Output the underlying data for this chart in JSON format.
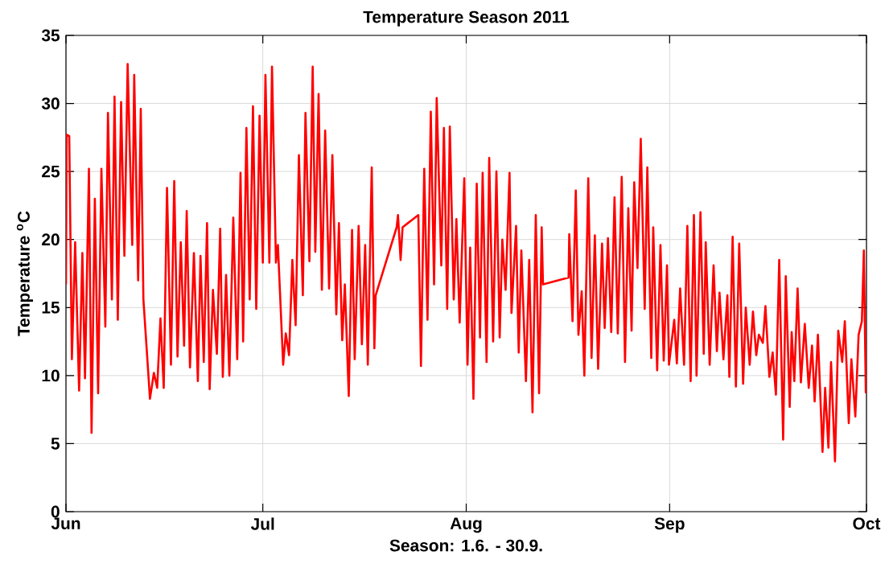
{
  "chart_data": {
    "type": "line",
    "title": "Temperature Season 2011",
    "xlabel": "Season: 1.6. - 30.9.",
    "ylabel": "Temperature $^{o}$C",
    "x": [
      "2011-06-01T00:00",
      "2011-06-01T02:24",
      "2011-06-01T12:00",
      "2011-06-01T21:36",
      "2011-06-02T09:36",
      "2011-06-03T00:00",
      "2011-06-03T12:00",
      "2011-06-03T21:36",
      "2011-06-04T12:00",
      "2011-06-04T21:36",
      "2011-06-05T09:36",
      "2011-06-05T21:36",
      "2011-06-06T09:36",
      "2011-06-07T00:00",
      "2011-06-07T09:36",
      "2011-06-08T00:00",
      "2011-06-08T09:36",
      "2011-06-08T21:36",
      "2011-06-09T09:36",
      "2011-06-09T21:36",
      "2011-06-10T09:36",
      "2011-06-11T02:24",
      "2011-06-11T09:36",
      "2011-06-12T00:00",
      "2011-06-12T09:36",
      "2011-06-12T19:12",
      "2011-06-13T19:12",
      "2011-06-14T09:36",
      "2011-06-14T21:36",
      "2011-06-15T09:36",
      "2011-06-15T21:36",
      "2011-06-16T09:36",
      "2011-06-17T00:00",
      "2011-06-17T12:00",
      "2011-06-18T00:00",
      "2011-06-18T12:00",
      "2011-06-19T00:00",
      "2011-06-19T09:36",
      "2011-06-19T21:36",
      "2011-06-20T12:00",
      "2011-06-21T02:24",
      "2011-06-21T12:00",
      "2011-06-22T00:00",
      "2011-06-22T12:00",
      "2011-06-22T21:36",
      "2011-06-23T09:36",
      "2011-06-24T00:00",
      "2011-06-24T12:00",
      "2011-06-24T21:36",
      "2011-06-25T09:36",
      "2011-06-25T21:36",
      "2011-06-26T12:00",
      "2011-06-27T02:24",
      "2011-06-27T14:24",
      "2011-06-28T00:00",
      "2011-06-28T12:00",
      "2011-06-29T00:00",
      "2011-06-29T12:00",
      "2011-06-30T00:00",
      "2011-06-30T12:00",
      "2011-07-01T00:00",
      "2011-07-01T09:36",
      "2011-07-02T00:00",
      "2011-07-02T09:36",
      "2011-07-03T00:00",
      "2011-07-03T07:12",
      "2011-07-04T02:24",
      "2011-07-04T12:00",
      "2011-07-05T00:00",
      "2011-07-05T12:00",
      "2011-07-06T00:00",
      "2011-07-06T12:00",
      "2011-07-07T02:24",
      "2011-07-07T12:00",
      "2011-07-08T02:24",
      "2011-07-08T14:24",
      "2011-07-09T00:00",
      "2011-07-09T12:00",
      "2011-07-10T00:00",
      "2011-07-10T12:00",
      "2011-07-11T02:24",
      "2011-07-11T14:24",
      "2011-07-12T04:48",
      "2011-07-12T14:24",
      "2011-07-13T02:24",
      "2011-07-13T12:00",
      "2011-07-14T02:24",
      "2011-07-14T14:24",
      "2011-07-15T00:00",
      "2011-07-15T14:24",
      "2011-07-16T02:24",
      "2011-07-16T14:24",
      "2011-07-17T00:00",
      "2011-07-17T14:24",
      "2011-07-18T00:00",
      "2011-07-18T04:48",
      "2011-07-21T09:36",
      "2011-07-21T14:24",
      "2011-07-22T00:00",
      "2011-07-22T07:12",
      "2011-07-24T16:48",
      "2011-07-25T02:24",
      "2011-07-25T14:24",
      "2011-07-26T02:24",
      "2011-07-26T14:24",
      "2011-07-27T02:24",
      "2011-07-27T12:00",
      "2011-07-28T04:48",
      "2011-07-28T14:24",
      "2011-07-29T02:24",
      "2011-07-29T12:00",
      "2011-07-30T02:24",
      "2011-07-30T12:00",
      "2011-07-31T00:00",
      "2011-07-31T16:48",
      "2011-08-01T04:48",
      "2011-08-01T14:24",
      "2011-08-02T02:24",
      "2011-08-02T14:24",
      "2011-08-03T02:24",
      "2011-08-03T12:00",
      "2011-08-04T02:24",
      "2011-08-04T12:00",
      "2011-08-05T02:24",
      "2011-08-05T14:24",
      "2011-08-06T02:24",
      "2011-08-06T12:00",
      "2011-08-07T00:00",
      "2011-08-07T14:24",
      "2011-08-07T21:36",
      "2011-08-08T14:24",
      "2011-08-09T00:00",
      "2011-08-09T09:36",
      "2011-08-10T02:24",
      "2011-08-10T14:24",
      "2011-08-11T02:24",
      "2011-08-11T14:24",
      "2011-08-12T02:24",
      "2011-08-12T12:00",
      "2011-08-12T16:48",
      "2011-08-16T14:24",
      "2011-08-16T16:48",
      "2011-08-17T04:48",
      "2011-08-17T16:48",
      "2011-08-18T02:24",
      "2011-08-18T14:24",
      "2011-08-19T00:00",
      "2011-08-19T14:24",
      "2011-08-20T02:24",
      "2011-08-20T14:24",
      "2011-08-21T02:24",
      "2011-08-21T16:48",
      "2011-08-22T02:24",
      "2011-08-22T14:24",
      "2011-08-23T02:24",
      "2011-08-23T14:24",
      "2011-08-24T02:24",
      "2011-08-24T16:48",
      "2011-08-25T04:48",
      "2011-08-25T16:48",
      "2011-08-26T04:48",
      "2011-08-26T14:24",
      "2011-08-27T02:24",
      "2011-08-27T14:24",
      "2011-08-28T04:48",
      "2011-08-28T14:24",
      "2011-08-29T04:48",
      "2011-08-29T12:00",
      "2011-08-30T02:24",
      "2011-08-30T14:24",
      "2011-08-31T02:24",
      "2011-08-31T14:24",
      "2011-08-31T21:36",
      "2011-09-01T16:48",
      "2011-09-02T02:24",
      "2011-09-02T14:24",
      "2011-09-03T04:48",
      "2011-09-03T16:48",
      "2011-09-04T04:48",
      "2011-09-04T16:48",
      "2011-09-05T02:24",
      "2011-09-05T16:48",
      "2011-09-06T04:48",
      "2011-09-06T12:00",
      "2011-09-07T02:24",
      "2011-09-07T16:48",
      "2011-09-08T04:48",
      "2011-09-08T14:24",
      "2011-09-09T04:48",
      "2011-09-09T19:12",
      "2011-09-10T02:24",
      "2011-09-10T14:24",
      "2011-09-11T02:24",
      "2011-09-11T14:24",
      "2011-09-12T04:48",
      "2011-09-12T14:24",
      "2011-09-13T04:48",
      "2011-09-13T16:48",
      "2011-09-14T04:48",
      "2011-09-14T14:24",
      "2011-09-15T04:48",
      "2011-09-15T14:24",
      "2011-09-16T04:48",
      "2011-09-16T16:48",
      "2011-09-17T04:48",
      "2011-09-17T16:48",
      "2011-09-18T07:12",
      "2011-09-18T16:48",
      "2011-09-19T07:12",
      "2011-09-19T14:24",
      "2011-09-20T00:00",
      "2011-09-20T12:00",
      "2011-09-21T00:00",
      "2011-09-21T14:24",
      "2011-09-22T04:48",
      "2011-09-22T16:48",
      "2011-09-23T02:24",
      "2011-09-23T14:24",
      "2011-09-24T07:12",
      "2011-09-24T16:48",
      "2011-09-25T04:48",
      "2011-09-25T14:24",
      "2011-09-26T04:48",
      "2011-09-26T16:48",
      "2011-09-27T07:12",
      "2011-09-27T16:48",
      "2011-09-28T07:12",
      "2011-09-28T16:48",
      "2011-09-29T07:12",
      "2011-09-29T19:12",
      "2011-09-30T07:12",
      "2011-09-30T14:24",
      "2011-09-30T21:36"
    ],
    "series": [
      {
        "color": "#ff0000",
        "values": [
          16.7,
          27.7,
          27.6,
          11.2,
          19.8,
          8.9,
          19.0,
          9.8,
          25.2,
          5.8,
          23.0,
          8.7,
          25.2,
          13.6,
          29.3,
          15.6,
          30.5,
          14.1,
          30.1,
          18.8,
          32.9,
          19.6,
          32.1,
          17.0,
          29.6,
          15.6,
          8.3,
          10.2,
          9.1,
          14.2,
          9.1,
          23.8,
          10.8,
          24.3,
          11.4,
          19.8,
          12.2,
          22.1,
          10.6,
          19.0,
          9.6,
          18.8,
          11.0,
          21.2,
          9.0,
          16.3,
          11.6,
          20.8,
          9.9,
          17.4,
          10.0,
          21.6,
          11.2,
          24.9,
          12.5,
          28.2,
          15.6,
          29.8,
          14.9,
          29.1,
          18.3,
          32.1,
          18.3,
          32.7,
          18.3,
          19.6,
          10.8,
          13.1,
          11.5,
          18.5,
          13.7,
          26.2,
          15.9,
          29.3,
          18.4,
          32.7,
          19.1,
          30.7,
          16.3,
          28.0,
          16.4,
          26.2,
          14.5,
          21.2,
          12.6,
          16.7,
          8.5,
          20.7,
          11.2,
          21.0,
          12.3,
          19.6,
          10.8,
          25.3,
          12.0,
          15.9,
          20.9,
          21.8,
          18.5,
          20.9,
          21.8,
          10.7,
          25.2,
          14.1,
          29.4,
          16.7,
          30.4,
          18.1,
          28.2,
          14.9,
          28.3,
          15.6,
          21.5,
          13.9,
          24.5,
          10.8,
          19.4,
          8.3,
          24.1,
          12.8,
          24.9,
          11.0,
          26.0,
          12.5,
          25.0,
          12.8,
          20.0,
          16.3,
          24.9,
          14.6,
          21.0,
          11.7,
          19.2,
          9.6,
          18.5,
          7.3,
          21.8,
          8.7,
          20.9,
          16.7,
          17.2,
          20.4,
          14.0,
          23.6,
          13.0,
          16.2,
          10.0,
          24.5,
          11.3,
          20.3,
          10.5,
          19.7,
          13.5,
          20.1,
          13.2,
          23.1,
          13.1,
          24.6,
          11.0,
          22.3,
          13.3,
          24.2,
          17.9,
          27.4,
          14.9,
          25.3,
          11.3,
          20.9,
          10.4,
          19.6,
          11.1,
          18.1,
          10.8,
          14.1,
          10.9,
          16.4,
          10.8,
          21.0,
          9.6,
          21.8,
          10.0,
          22.0,
          11.6,
          19.8,
          10.8,
          18.1,
          11.8,
          16.1,
          11.2,
          15.9,
          9.9,
          20.2,
          9.2,
          19.7,
          9.4,
          15.0,
          10.8,
          14.7,
          11.5,
          13.0,
          12.4,
          15.1,
          9.9,
          11.7,
          8.6,
          18.5,
          5.3,
          17.3,
          7.7,
          13.2,
          9.6,
          16.4,
          9.5,
          13.8,
          9.1,
          12.2,
          8.1,
          13.0,
          4.4,
          9.1,
          4.7,
          11.0,
          3.7,
          13.3,
          11.0,
          14.0,
          6.5,
          11.2,
          7.0,
          13.0,
          14.0,
          19.2,
          8.7
        ]
      }
    ],
    "xlim": [
      "2011-06-01",
      "2011-10-01"
    ],
    "xticks": [
      {
        "value": "2011-06-01",
        "label": "Jun"
      },
      {
        "value": "2011-07-01",
        "label": "Jul"
      },
      {
        "value": "2011-08-01",
        "label": "Aug"
      },
      {
        "value": "2011-09-01",
        "label": "Sep"
      },
      {
        "value": "2011-10-01",
        "label": "Oct"
      }
    ],
    "ylim": [
      0,
      35
    ],
    "yticks": [
      0,
      5,
      10,
      15,
      20,
      25,
      30,
      35
    ],
    "grid": true
  }
}
